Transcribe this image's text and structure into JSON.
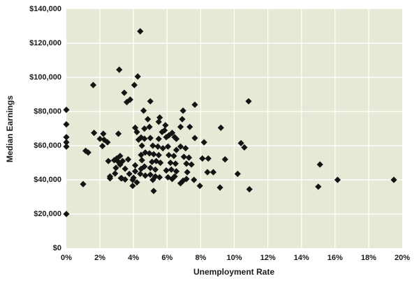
{
  "figure": {
    "background": "#ffffff"
  },
  "chart_data": {
    "type": "scatter",
    "title": "",
    "xlabel": "Unemployment Rate",
    "ylabel": "Median Earnings",
    "xlim": [
      0,
      20
    ],
    "ylim": [
      0,
      140000
    ],
    "grid": true,
    "legend": "none",
    "plot_bg_color": "#E8E8D7",
    "grid_color": "#FFFFFF",
    "marker_color": "#141414",
    "marker_shape": "diamond",
    "x_ticks": [
      {
        "value": 0,
        "label": "0%"
      },
      {
        "value": 2,
        "label": "2%"
      },
      {
        "value": 4,
        "label": "4%"
      },
      {
        "value": 6,
        "label": "6%"
      },
      {
        "value": 8,
        "label": "8%"
      },
      {
        "value": 10,
        "label": "10%"
      },
      {
        "value": 12,
        "label": "12%"
      },
      {
        "value": 14,
        "label": "14%"
      },
      {
        "value": 16,
        "label": "16%"
      },
      {
        "value": 18,
        "label": "18%"
      },
      {
        "value": 20,
        "label": "20%"
      }
    ],
    "y_ticks": [
      {
        "value": 0,
        "label": "$0"
      },
      {
        "value": 20000,
        "label": "$20,000"
      },
      {
        "value": 40000,
        "label": "$40,000"
      },
      {
        "value": 60000,
        "label": "$60,000"
      },
      {
        "value": 80000,
        "label": "$80,000"
      },
      {
        "value": 100000,
        "label": "$100,000"
      },
      {
        "value": 120000,
        "label": "$120,000"
      },
      {
        "value": 140000,
        "label": "$140,000"
      }
    ],
    "points": [
      [
        0,
        81000
      ],
      [
        0,
        72500
      ],
      [
        0,
        65000
      ],
      [
        0,
        62000
      ],
      [
        0,
        59500
      ],
      [
        0,
        20000
      ],
      [
        1.0,
        37500
      ],
      [
        1.15,
        57000
      ],
      [
        1.3,
        56000
      ],
      [
        1.6,
        95500
      ],
      [
        1.65,
        67500
      ],
      [
        2.0,
        64000
      ],
      [
        2.2,
        67000
      ],
      [
        2.25,
        63500
      ],
      [
        2.15,
        59800
      ],
      [
        2.45,
        62000
      ],
      [
        2.5,
        51000
      ],
      [
        2.6,
        42000
      ],
      [
        2.6,
        40900
      ],
      [
        2.85,
        51500
      ],
      [
        3.0,
        52500
      ],
      [
        3.1,
        67000
      ],
      [
        3.15,
        104500
      ],
      [
        3.1,
        50500
      ],
      [
        2.95,
        47000
      ],
      [
        2.9,
        43700
      ],
      [
        3.2,
        54000
      ],
      [
        3.2,
        48900
      ],
      [
        3.25,
        41000
      ],
      [
        3.3,
        40900
      ],
      [
        3.35,
        51000
      ],
      [
        3.45,
        91000
      ],
      [
        3.5,
        46500
      ],
      [
        3.5,
        40200
      ],
      [
        3.6,
        85500
      ],
      [
        3.68,
        52000
      ],
      [
        3.75,
        43500
      ],
      [
        3.8,
        87000
      ],
      [
        3.95,
        40000
      ],
      [
        3.95,
        36500
      ],
      [
        4.05,
        95500
      ],
      [
        4.1,
        48500
      ],
      [
        4.1,
        45000
      ],
      [
        4.0,
        41200
      ],
      [
        4.2,
        38500
      ],
      [
        4.25,
        100500
      ],
      [
        4.4,
        127000
      ],
      [
        4.1,
        70500
      ],
      [
        4.2,
        68000
      ],
      [
        4.3,
        63500
      ],
      [
        4.45,
        64800
      ],
      [
        4.65,
        64100
      ],
      [
        4.5,
        60000
      ],
      [
        4.6,
        80500
      ],
      [
        4.65,
        70000
      ],
      [
        4.85,
        75500
      ],
      [
        4.95,
        71000
      ],
      [
        4.45,
        54600
      ],
      [
        4.7,
        56000
      ],
      [
        4.5,
        51500
      ],
      [
        4.65,
        47800
      ],
      [
        4.45,
        46400
      ],
      [
        4.4,
        43500
      ],
      [
        4.7,
        42500
      ],
      [
        5.0,
        86000
      ],
      [
        5.56,
        76500
      ],
      [
        5.5,
        74000
      ],
      [
        5.9,
        72000
      ],
      [
        5.85,
        69000
      ],
      [
        5.7,
        68000
      ],
      [
        5.0,
        64500
      ],
      [
        5.5,
        64000
      ],
      [
        5.95,
        65000
      ],
      [
        5.15,
        60000
      ],
      [
        5.45,
        59500
      ],
      [
        5.75,
        58500
      ],
      [
        4.95,
        55500
      ],
      [
        5.2,
        55000
      ],
      [
        5.5,
        54500
      ],
      [
        5.1,
        50500
      ],
      [
        5.35,
        51000
      ],
      [
        5.6,
        50000
      ],
      [
        5.0,
        47000
      ],
      [
        5.3,
        46000
      ],
      [
        5.95,
        45500
      ],
      [
        5.0,
        43000
      ],
      [
        5.3,
        42000
      ],
      [
        5.15,
        40000
      ],
      [
        5.55,
        41500
      ],
      [
        5.2,
        33500
      ],
      [
        6.3,
        67500
      ],
      [
        6.1,
        66000
      ],
      [
        6.45,
        65000
      ],
      [
        6.55,
        64000
      ],
      [
        6.05,
        59500
      ],
      [
        6.8,
        59500
      ],
      [
        6.1,
        54500
      ],
      [
        6.4,
        54000
      ],
      [
        6.55,
        57500
      ],
      [
        6.2,
        50000
      ],
      [
        6.5,
        49500
      ],
      [
        6.25,
        46000
      ],
      [
        6.55,
        45000
      ],
      [
        6.05,
        41500
      ],
      [
        6.45,
        42000
      ],
      [
        6.3,
        40500
      ],
      [
        6.8,
        38000
      ],
      [
        6.95,
        39500
      ],
      [
        6.8,
        71000
      ],
      [
        6.9,
        75500
      ],
      [
        6.95,
        80500
      ],
      [
        7.35,
        71000
      ],
      [
        7.65,
        84000
      ],
      [
        7.1,
        58500
      ],
      [
        7.0,
        53500
      ],
      [
        7.3,
        53000
      ],
      [
        7.15,
        49500
      ],
      [
        7.45,
        49000
      ],
      [
        7.2,
        44500
      ],
      [
        7.15,
        40500
      ],
      [
        7.6,
        40000
      ],
      [
        7.65,
        64500
      ],
      [
        7.95,
        36500
      ],
      [
        8.2,
        62000
      ],
      [
        8.1,
        52500
      ],
      [
        8.45,
        52500
      ],
      [
        8.4,
        44500
      ],
      [
        8.75,
        44500
      ],
      [
        9.2,
        70500
      ],
      [
        9.45,
        52000
      ],
      [
        9.15,
        35500
      ],
      [
        10.4,
        61500
      ],
      [
        10.6,
        59000
      ],
      [
        10.85,
        86000
      ],
      [
        10.2,
        43500
      ],
      [
        10.9,
        34500
      ],
      [
        15.1,
        49000
      ],
      [
        15.0,
        36000
      ],
      [
        16.15,
        40000
      ],
      [
        19.5,
        40000
      ]
    ]
  }
}
